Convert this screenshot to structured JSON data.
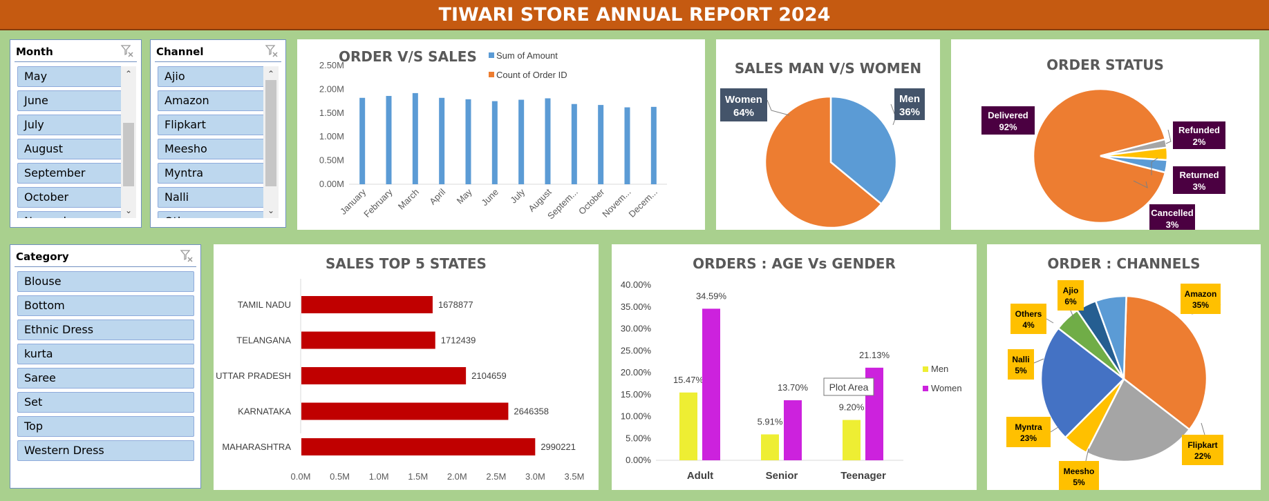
{
  "report_title": "TIWARI STORE ANNUAL REPORT 2024",
  "colors": {
    "banner": "#c55a11",
    "background": "#a9d08e",
    "blue": "#5b9bd5",
    "orange": "#ed7d31",
    "red": "#c00000",
    "yellow": "#eeee33",
    "magenta": "#cc22dd",
    "purple": "#4b0041",
    "slate": "#44546a",
    "gold": "#ffc000"
  },
  "slicers": {
    "month": {
      "title": "Month",
      "items": [
        "May",
        "June",
        "July",
        "August",
        "September",
        "October",
        "November"
      ]
    },
    "channel": {
      "title": "Channel",
      "items": [
        "Ajio",
        "Amazon",
        "Flipkart",
        "Meesho",
        "Myntra",
        "Nalli",
        "Others"
      ]
    },
    "category": {
      "title": "Category",
      "items": [
        "Blouse",
        "Bottom",
        "Ethnic Dress",
        "kurta",
        "Saree",
        "Set",
        "Top",
        "Western Dress"
      ]
    }
  },
  "chart_data": [
    {
      "id": "order_vs_sales",
      "type": "bar",
      "title": "ORDER V/S SALES",
      "categories": [
        "January",
        "February",
        "March",
        "April",
        "May",
        "June",
        "July",
        "August",
        "Septem...",
        "October",
        "Novem...",
        "Decem..."
      ],
      "series": [
        {
          "name": "Sum of Amount",
          "color": "#5b9bd5",
          "values": [
            1.82,
            1.86,
            1.92,
            1.82,
            1.79,
            1.75,
            1.78,
            1.81,
            1.69,
            1.67,
            1.62,
            1.63
          ]
        },
        {
          "name": "Count of Order ID",
          "color": "#ed7d31",
          "values": [
            0,
            0,
            0,
            0,
            0,
            0,
            0,
            0,
            0,
            0,
            0,
            0
          ]
        }
      ],
      "y_ticks": [
        "0.00M",
        "0.50M",
        "1.00M",
        "1.50M",
        "2.00M",
        "2.50M"
      ],
      "ylim": [
        0,
        2.5
      ],
      "legend": "top-right"
    },
    {
      "id": "sales_gender",
      "type": "pie",
      "title": "SALES MAN V/S WOMEN",
      "slices": [
        {
          "label": "Men",
          "pct": "36%",
          "value": 36,
          "color": "#5b9bd5"
        },
        {
          "label": "Women",
          "pct": "64%",
          "value": 64,
          "color": "#ed7d31"
        }
      ]
    },
    {
      "id": "order_status",
      "type": "pie",
      "title": "ORDER STATUS",
      "slices": [
        {
          "label": "Delivered",
          "pct": "92%",
          "value": 92,
          "color": "#ed7d31"
        },
        {
          "label": "Refunded",
          "pct": "2%",
          "value": 2,
          "color": "#a5a5a5"
        },
        {
          "label": "Returned",
          "pct": "3%",
          "value": 3,
          "color": "#ffc000"
        },
        {
          "label": "Cancelled",
          "pct": "3%",
          "value": 3,
          "color": "#5b9bd5"
        }
      ]
    },
    {
      "id": "top_states",
      "type": "bar",
      "orientation": "horizontal",
      "title": "SALES TOP 5 STATES",
      "categories": [
        "TAMIL NADU",
        "TELANGANA",
        "UTTAR PRADESH",
        "KARNATAKA",
        "MAHARASHTRA"
      ],
      "values": [
        1678877,
        1712439,
        2104659,
        2646358,
        2990221
      ],
      "labels": [
        "1678877",
        "1712439",
        "2104659",
        "2646358",
        "2990221"
      ],
      "x_ticks": [
        "0.0M",
        "0.5M",
        "1.0M",
        "1.5M",
        "2.0M",
        "2.5M",
        "3.0M",
        "3.5M"
      ],
      "xlim": [
        0,
        3500000
      ]
    },
    {
      "id": "age_gender",
      "type": "bar",
      "title": "ORDERS : AGE Vs GENDER",
      "categories": [
        "Adult",
        "Senior",
        "Teenager"
      ],
      "series": [
        {
          "name": "Men",
          "color": "#eeee33",
          "values": [
            15.47,
            5.91,
            9.2
          ],
          "labels": [
            "15.47%",
            "5.91%",
            "9.20%"
          ]
        },
        {
          "name": "Women",
          "color": "#cc22dd",
          "values": [
            34.59,
            13.7,
            21.13
          ],
          "labels": [
            "34.59%",
            "13.70%",
            "21.13%"
          ]
        }
      ],
      "y_ticks": [
        "0.00%",
        "5.00%",
        "10.00%",
        "15.00%",
        "20.00%",
        "25.00%",
        "30.00%",
        "35.00%",
        "40.00%"
      ],
      "ylim": [
        0,
        40
      ],
      "legend": "right",
      "tooltip": "Plot Area"
    },
    {
      "id": "channels",
      "type": "pie",
      "title": "ORDER : CHANNELS",
      "slices": [
        {
          "label": "Amazon",
          "pct": "35%",
          "value": 35,
          "color": "#ed7d31"
        },
        {
          "label": "Flipkart",
          "pct": "22%",
          "value": 22,
          "color": "#a5a5a5"
        },
        {
          "label": "Meesho",
          "pct": "5%",
          "value": 5,
          "color": "#ffc000"
        },
        {
          "label": "Myntra",
          "pct": "23%",
          "value": 23,
          "color": "#4472c4"
        },
        {
          "label": "Nalli",
          "pct": "5%",
          "value": 5,
          "color": "#70ad47"
        },
        {
          "label": "Others",
          "pct": "4%",
          "value": 4,
          "color": "#255e91"
        },
        {
          "label": "Ajio",
          "pct": "6%",
          "value": 6,
          "color": "#5b9bd5"
        }
      ]
    }
  ]
}
